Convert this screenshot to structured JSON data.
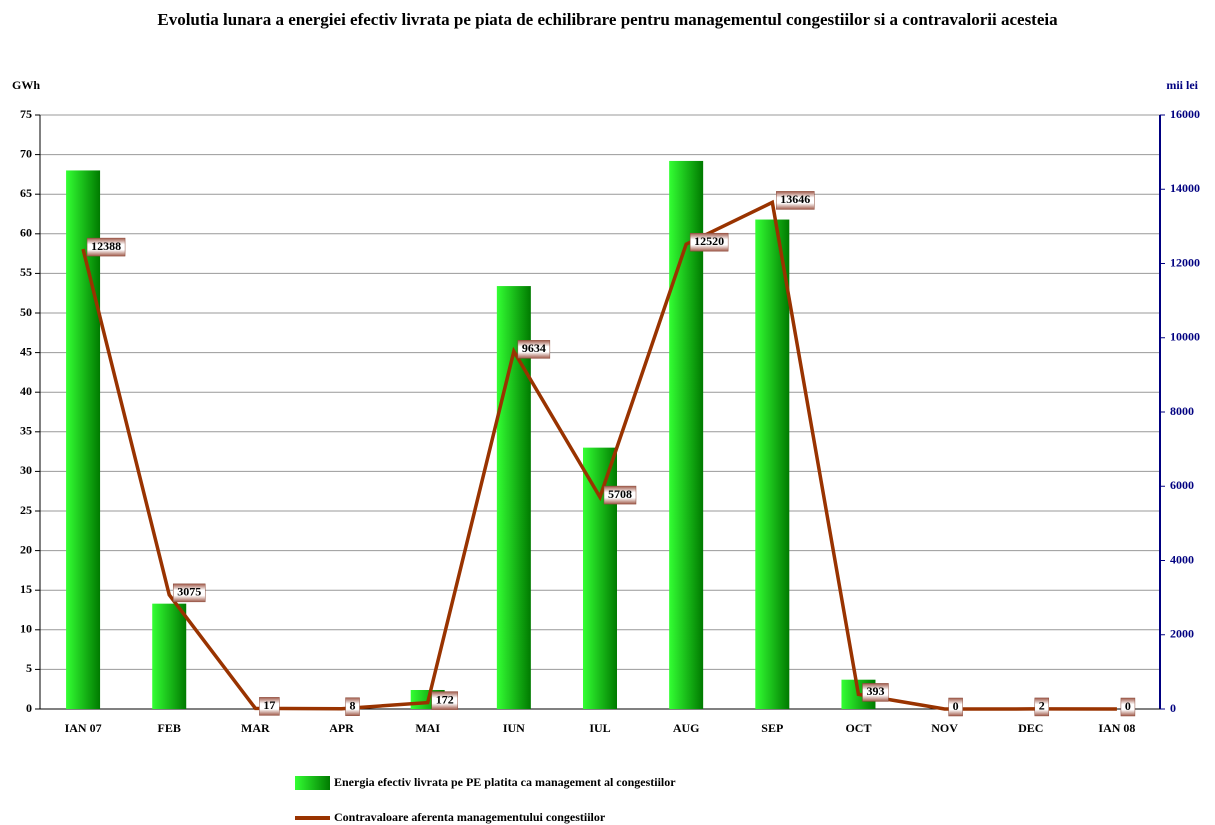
{
  "chart_data": {
    "type": "bar_line",
    "title": "Evolutia lunara a energiei efectiv livrata pe piata de echilibrare pentru managementul congestiilor si a contravalorii acesteia",
    "y_label": "GWh",
    "y2_label": "mii lei",
    "categories": [
      "IAN 07",
      "FEB",
      "MAR",
      "APR",
      "MAI",
      "IUN",
      "IUL",
      "AUG",
      "SEP",
      "OCT",
      "NOV",
      "DEC",
      "IAN 08"
    ],
    "series": [
      {
        "name": "Energia efectiv livrata pe PE platita ca management al congestiilor",
        "type": "bar",
        "color": "#00cc00",
        "values": [
          68,
          13.3,
          0,
          0,
          2.4,
          53.4,
          33,
          69.2,
          61.8,
          3.7,
          0,
          0,
          0
        ]
      },
      {
        "name": "Contravaloare aferenta managementului congestiilor",
        "type": "line",
        "axis": "y2",
        "color": "#993300",
        "values": [
          12388,
          3075,
          17,
          8,
          172,
          9634,
          5708,
          12520,
          13646,
          393,
          0,
          2,
          0
        ]
      }
    ],
    "ylim": [
      0,
      75
    ],
    "yticks": [
      0,
      5,
      10,
      15,
      20,
      25,
      30,
      35,
      40,
      45,
      50,
      55,
      60,
      65,
      70,
      75
    ],
    "y2lim": [
      0,
      16000
    ],
    "y2ticks": [
      0,
      2000,
      4000,
      6000,
      8000,
      10000,
      12000,
      14000,
      16000
    ],
    "grid": true
  }
}
